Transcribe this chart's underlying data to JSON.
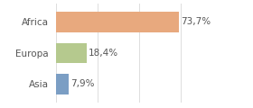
{
  "categories": [
    "Asia",
    "Europa",
    "Africa"
  ],
  "values": [
    7.9,
    18.4,
    73.7
  ],
  "bar_colors": [
    "#7b9ec4",
    "#b5c98e",
    "#e8a97e"
  ],
  "labels": [
    "7,9%",
    "18,4%",
    "73,7%"
  ],
  "xlim": [
    0,
    100
  ],
  "background_color": "#ffffff",
  "bar_height": 0.65,
  "label_fontsize": 7.5,
  "tick_fontsize": 7.5,
  "figwidth": 2.8,
  "figheight": 1.2,
  "dpi": 100
}
